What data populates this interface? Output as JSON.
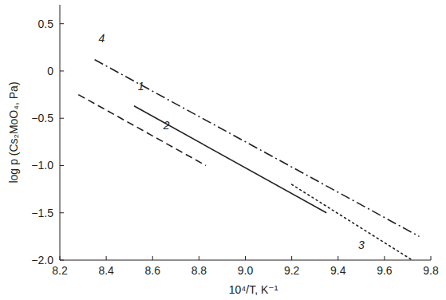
{
  "chart_data": {
    "type": "line",
    "x_label": "10⁴/T, K⁻¹",
    "y_label": "log p (Cs₂MoO₄, Pa)",
    "xlim": [
      8.2,
      9.8
    ],
    "ylim": [
      -2.0,
      0.7
    ],
    "xticks": [
      8.2,
      8.4,
      8.6,
      8.8,
      {
        "value": 9,
        "label": "9.0"
      },
      9.2,
      9.4,
      9.6,
      9.8
    ],
    "yticks": [
      0.5,
      0,
      {
        "value": -0.5,
        "label": "−0.5"
      },
      {
        "value": -1,
        "label": "−1.0"
      },
      {
        "value": -1.5,
        "label": "−1.5"
      },
      {
        "value": -2,
        "label": "−2.0"
      }
    ],
    "grid": false,
    "series": [
      {
        "color": "#231f20",
        "line_style": "solid",
        "x": [
          8.52,
          9.35
        ],
        "values": [
          -0.37,
          -1.5
        ]
      },
      {
        "color": "#231f20",
        "line_style": "dashed",
        "x": [
          8.28,
          8.83
        ],
        "values": [
          -0.25,
          -1.0
        ]
      },
      {
        "color": "#231f20",
        "line_style": "dotted",
        "x": [
          9.2,
          9.72
        ],
        "values": [
          -1.2,
          -2.0
        ]
      },
      {
        "color": "#231f20",
        "line_style": "dashdot",
        "x": [
          8.35,
          9.75
        ],
        "values": [
          0.12,
          -1.75
        ]
      }
    ],
    "annotations": [
      {
        "text": "1",
        "x": 8.55,
        "y": -0.2
      },
      {
        "text": "2",
        "x": 8.66,
        "y": -0.62
      },
      {
        "text": "3",
        "x": 9.5,
        "y": -1.88
      },
      {
        "text": "4",
        "x": 8.38,
        "y": 0.3
      }
    ]
  }
}
